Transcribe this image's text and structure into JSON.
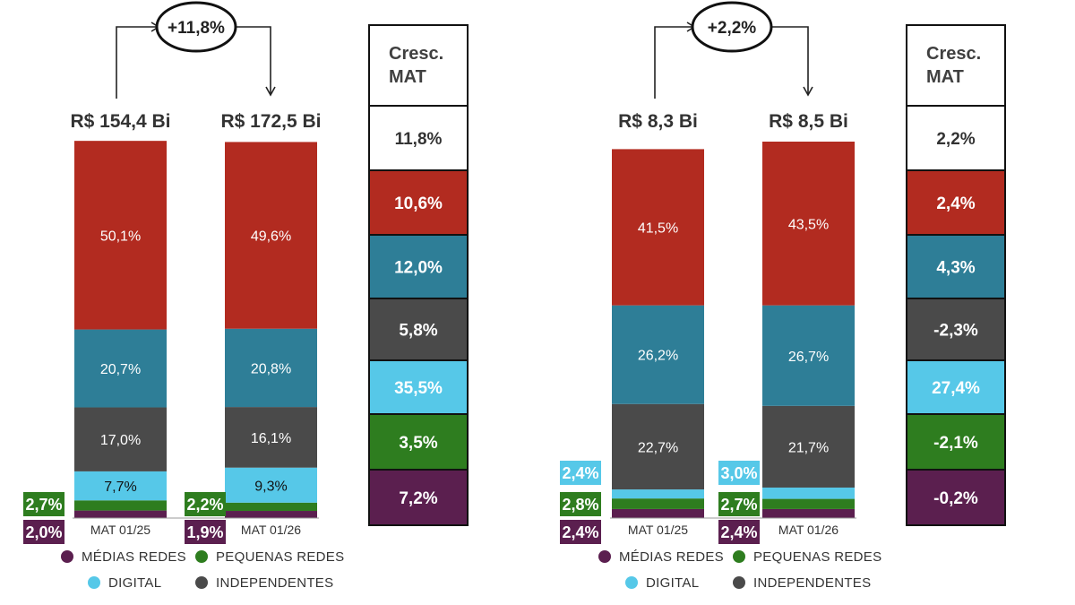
{
  "colors": {
    "medias_redes": "#5b1f4f",
    "pequenas_redes": "#2e7d1f",
    "digital": "#56c8e8",
    "independentes": "#4a4a4a",
    "grandes_redes": "#b22b20",
    "farmacias": "#2e7e97"
  },
  "growth_header": "Cresc. MAT",
  "legend": [
    {
      "key": "medias_redes",
      "label": "MÉDIAS REDES",
      "color": "#5b1f4f"
    },
    {
      "key": "pequenas_redes",
      "label": "PEQUENAS REDES",
      "color": "#2e7d1f"
    },
    {
      "key": "digital",
      "label": "DIGITAL",
      "color": "#56c8e8"
    },
    {
      "key": "independentes",
      "label": "INDEPENDENTES",
      "color": "#4a4a4a"
    }
  ],
  "chart_data": [
    {
      "type": "bar",
      "stacked": true,
      "categories": [
        "MAT 01/25",
        "MAT 01/26"
      ],
      "totals": [
        "R$ 154,4 Bi",
        "R$ 172,5 Bi"
      ],
      "growth_callout": "+11,8%",
      "series": [
        {
          "key": "medias_redes",
          "values": [
            2.0,
            1.9
          ],
          "labels": [
            "2,0%",
            "1,9%"
          ]
        },
        {
          "key": "pequenas_redes",
          "values": [
            2.7,
            2.2
          ],
          "labels": [
            "2,7%",
            "2,2%"
          ]
        },
        {
          "key": "digital",
          "values": [
            7.7,
            9.3
          ],
          "labels": [
            "7,7%",
            "9,3%"
          ]
        },
        {
          "key": "independentes",
          "values": [
            17.0,
            16.1
          ],
          "labels": [
            "17,0%",
            "16,1%"
          ]
        },
        {
          "key": "farmacias",
          "values": [
            20.7,
            20.8
          ],
          "labels": [
            "20,7%",
            "20,8%"
          ]
        },
        {
          "key": "grandes_redes",
          "values": [
            50.1,
            49.6
          ],
          "labels": [
            "50,1%",
            "49,6%"
          ]
        }
      ],
      "growth_column": [
        {
          "key": "total",
          "value": "11,8%"
        },
        {
          "key": "grandes_redes",
          "value": "10,6%"
        },
        {
          "key": "farmacias",
          "value": "12,0%"
        },
        {
          "key": "independentes",
          "value": "5,8%"
        },
        {
          "key": "digital",
          "value": "35,5%"
        },
        {
          "key": "pequenas_redes",
          "value": "3,5%"
        },
        {
          "key": "medias_redes",
          "value": "7,2%"
        }
      ]
    },
    {
      "type": "bar",
      "stacked": true,
      "categories": [
        "MAT 01/25",
        "MAT 01/26"
      ],
      "totals": [
        "R$ 8,3 Bi",
        "R$ 8,5 Bi"
      ],
      "growth_callout": "+2,2%",
      "series": [
        {
          "key": "medias_redes",
          "values": [
            2.4,
            2.4
          ],
          "labels": [
            "2,4%",
            "2,4%"
          ]
        },
        {
          "key": "pequenas_redes",
          "values": [
            2.8,
            2.7
          ],
          "labels": [
            "2,8%",
            "2,7%"
          ]
        },
        {
          "key": "digital",
          "values": [
            2.4,
            3.0
          ],
          "labels": [
            "2,4%",
            "3,0%"
          ]
        },
        {
          "key": "independentes",
          "values": [
            22.7,
            21.7
          ],
          "labels": [
            "22,7%",
            "21,7%"
          ]
        },
        {
          "key": "farmacias",
          "values": [
            26.2,
            26.7
          ],
          "labels": [
            "26,2%",
            "26,7%"
          ]
        },
        {
          "key": "grandes_redes",
          "values": [
            41.5,
            43.5
          ],
          "labels": [
            "41,5%",
            "43,5%"
          ]
        }
      ],
      "growth_column": [
        {
          "key": "total",
          "value": "2,2%"
        },
        {
          "key": "grandes_redes",
          "value": "2,4%"
        },
        {
          "key": "farmacias",
          "value": "4,3%"
        },
        {
          "key": "independentes",
          "value": "-2,3%"
        },
        {
          "key": "digital",
          "value": "27,4%"
        },
        {
          "key": "pequenas_redes",
          "value": "-2,1%"
        },
        {
          "key": "medias_redes",
          "value": "-0,2%"
        }
      ]
    }
  ]
}
